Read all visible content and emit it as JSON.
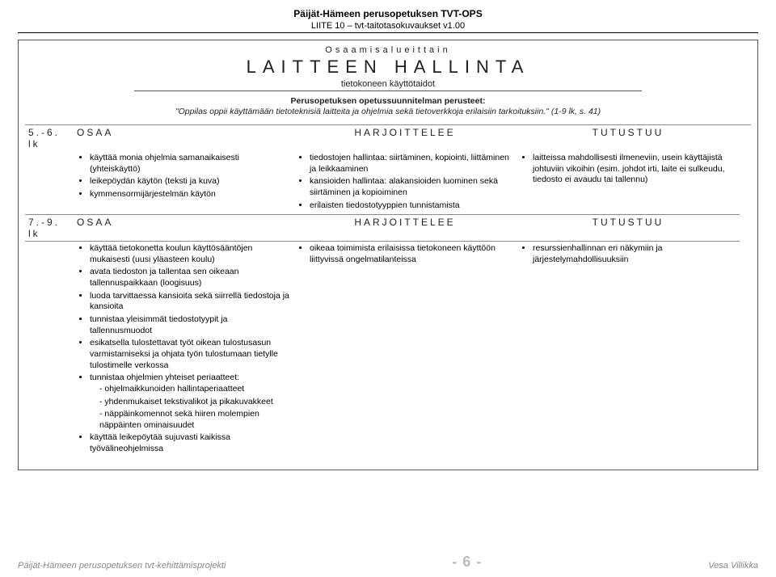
{
  "header": {
    "title": "Päijät-Hämeen perusopetuksen TVT-OPS",
    "subtitle": "LIITE 10 – tvt-taitotasokuvaukset v1.00"
  },
  "box": {
    "osa": "Osaamisalueittain",
    "main": "LAITTEEN HALLINTA",
    "sub": "tietokoneen käyttötaidot",
    "perusteet": "Perusopetuksen opetussuunnitelman perusteet:",
    "quote": "\"Oppilas oppii käyttämään tietoteknisiä laitteita ja ohjelmia sekä tietoverkkoja erilaisiin tarkoituksiin.\" (1-9 lk, s. 41)"
  },
  "table": {
    "row1": {
      "grade": "5.-6. lk",
      "h_osaa": "OSAA",
      "h_harj": "HARJOITTELEE",
      "h_tut": "TUTUSTUU",
      "osaa": [
        "käyttää monia ohjelmia samanaikaisesti (yhteiskäyttö)",
        "leikepöydän käytön (teksti ja kuva)",
        "kymmensormijärjestelmän käytön"
      ],
      "harj": [
        "tiedostojen hallintaa: siirtäminen, kopiointi, liittäminen ja leikkaaminen",
        "kansioiden hallintaa: alakansioiden luominen sekä siirtäminen ja kopioiminen",
        "erilaisten tiedostotyyppien tunnistamista"
      ],
      "tut": [
        "laitteissa mahdollisesti ilmeneviin, usein käyttäjistä johtuviin vikoihin (esim. johdot irti, laite ei sulkeudu, tiedosto ei avaudu tai tallennu)"
      ]
    },
    "row2": {
      "grade": "7.-9. lk",
      "h_osaa": "OSAA",
      "h_harj": "HARJOITTELEE",
      "h_tut": "TUTUSTUU",
      "osaa_top": [
        "käyttää tietokonetta koulun käyttösääntöjen mukaisesti (uusi yläasteen koulu)",
        "avata tiedoston ja tallentaa sen oikeaan tallennuspaikkaan (loogisuus)",
        "luoda tarvittaessa kansioita sekä siirrellä tiedostoja ja kansioita",
        "tunnistaa yleisimmät tiedostotyypit ja tallennusmuodot",
        "esikatsella tulostettavat työt oikean tulostusasun varmistamiseksi ja ohjata työn tulostumaan tietylle tulostimelle verkossa",
        "tunnistaa ohjelmien yhteiset periaatteet:"
      ],
      "osaa_dash": [
        "ohjelmaikkunoiden hallintaperiaatteet",
        "yhdenmukaiset tekstivalikot ja pikakuvakkeet",
        "näppäinkomennot sekä hiiren molempien näppäinten ominaisuudet"
      ],
      "osaa_bottom": [
        "käyttää leikepöytää sujuvasti kaikissa työvälineohjelmissa"
      ],
      "harj": [
        "oikeaa toimimista erilaisissa tietokoneen käyttöön liittyvissä ongelmatilanteissa"
      ],
      "tut": [
        "resurssienhallinnan eri näkymiin ja järjestelymahdollisuuksiin"
      ]
    }
  },
  "footer": {
    "left": "Päijät-Hämeen perusopetuksen tvt-kehittämisprojekti",
    "page": "- 6 -",
    "right": "Vesa Villikka"
  }
}
